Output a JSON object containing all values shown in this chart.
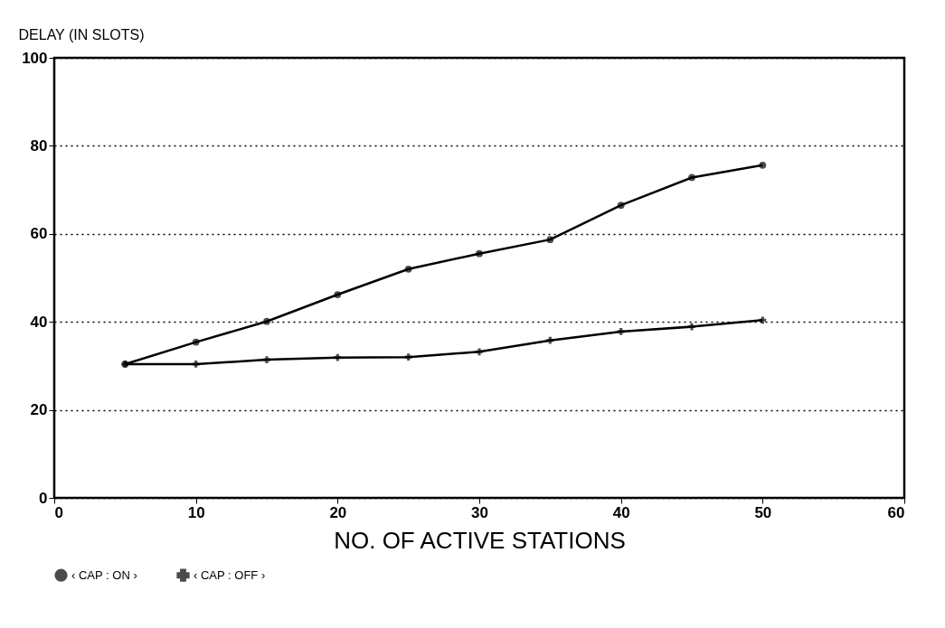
{
  "chart_data": {
    "type": "line",
    "xlabel": "NO. OF ACTIVE STATIONS",
    "ylabel": "DELAY (IN SLOTS)",
    "x": [
      5,
      10,
      15,
      20,
      25,
      30,
      35,
      40,
      45,
      50
    ],
    "series": [
      {
        "name": "‹ CAP : ON ›",
        "color": "#000000",
        "marker": "circle",
        "values": [
          30.4,
          35.4,
          40.1,
          46.2,
          52,
          55.5,
          58.7,
          66.5,
          72.8,
          75.6
        ]
      },
      {
        "name": "‹ CAP : OFF ›",
        "color": "#000000",
        "marker": "cross",
        "values": [
          30.4,
          30.4,
          31.4,
          31.9,
          32,
          33.2,
          35.8,
          37.8,
          38.9,
          40.4
        ]
      }
    ],
    "xlim": [
      0,
      60
    ],
    "xticks": [
      0,
      10,
      20,
      30,
      40,
      50,
      60
    ],
    "ylim": [
      0,
      100
    ],
    "yticks": [
      0,
      20,
      40,
      60,
      80,
      100
    ],
    "grid": "y",
    "legend": "bottom",
    "line_style": "solid"
  }
}
